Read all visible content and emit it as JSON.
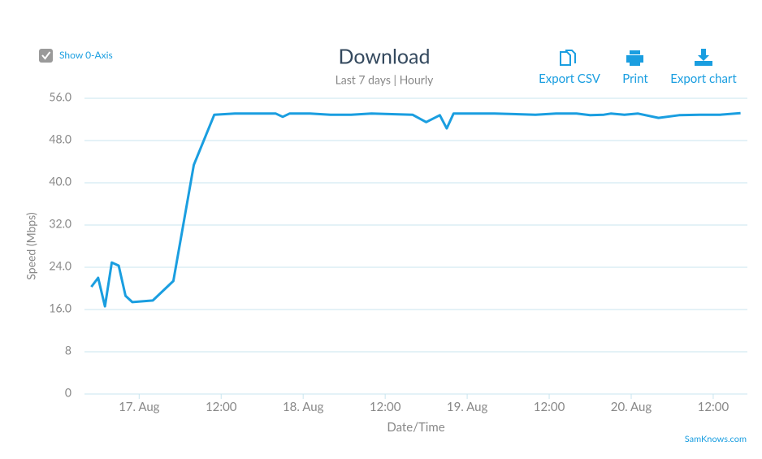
{
  "controls": {
    "show_zero_axis": {
      "label": "Show 0-Axis",
      "checked": true
    }
  },
  "buttons": [
    "Export CSV",
    "Print",
    "Export chart"
  ],
  "credit": "SamKnows.com",
  "chart_data": {
    "type": "line",
    "title": "Download",
    "subtitle": "Last 7 days | Hourly",
    "x_label": "Date/Time",
    "y_label": "Speed (Mbps)",
    "color": "#1a9ee0",
    "grid": true,
    "x": [
      "16 Aug 17:00",
      "16 Aug 18:00",
      "16 Aug 19:00",
      "16 Aug 20:00",
      "16 Aug 21:00",
      "16 Aug 22:00",
      "16 Aug 23:00",
      "17 Aug 02:00",
      "17 Aug 05:00",
      "17 Aug 08:00",
      "17 Aug 11:00",
      "17 Aug 14:00",
      "17 Aug 20:00",
      "17 Aug 21:00",
      "17 Aug 22:00",
      "18 Aug 01:00",
      "18 Aug 04:00",
      "18 Aug 07:00",
      "18 Aug 10:00",
      "18 Aug 16:00",
      "18 Aug 18:00",
      "18 Aug 20:00",
      "18 Aug 21:00",
      "18 Aug 22:00",
      "19 Aug 04:00",
      "19 Aug 10:00",
      "19 Aug 13:00",
      "19 Aug 16:00",
      "19 Aug 18:00",
      "19 Aug 20:00",
      "19 Aug 21:00",
      "19 Aug 23:00",
      "20 Aug 01:00",
      "20 Aug 04:00",
      "20 Aug 07:00",
      "20 Aug 10:00",
      "20 Aug 13:00",
      "20 Aug 16:00"
    ],
    "values": [
      20.3,
      22.0,
      16.6,
      24.9,
      24.3,
      18.6,
      17.4,
      17.7,
      21.4,
      43.4,
      52.9,
      53.1,
      53.1,
      52.5,
      53.1,
      53.1,
      52.9,
      52.9,
      53.1,
      52.9,
      51.5,
      52.8,
      50.3,
      53.1,
      53.1,
      52.9,
      53.1,
      53.1,
      52.8,
      52.9,
      53.1,
      52.9,
      53.1,
      52.3,
      52.8,
      52.9,
      52.9,
      53.2
    ],
    "xlim": [
      "16 Aug 16:00",
      "20 Aug 17:00"
    ],
    "xticks": [
      {
        "value": "17 Aug 00:00",
        "label": "17. Aug"
      },
      {
        "value": "17 Aug 12:00",
        "label": "12:00"
      },
      {
        "value": "18 Aug 00:00",
        "label": "18. Aug"
      },
      {
        "value": "18 Aug 12:00",
        "label": "12:00"
      },
      {
        "value": "19 Aug 00:00",
        "label": "19. Aug"
      },
      {
        "value": "19 Aug 12:00",
        "label": "12:00"
      },
      {
        "value": "20 Aug 00:00",
        "label": "20. Aug"
      },
      {
        "value": "20 Aug 12:00",
        "label": "12:00"
      }
    ],
    "ylim": [
      0,
      56
    ],
    "yticks": [
      0,
      8,
      {
        "value": 16,
        "label": "16.0"
      },
      {
        "value": 24,
        "label": "24.0"
      },
      {
        "value": 32,
        "label": "32.0"
      },
      {
        "value": 40,
        "label": "40.0"
      },
      {
        "value": 48,
        "label": "48.0"
      },
      {
        "value": 56,
        "label": "56.0"
      }
    ]
  }
}
